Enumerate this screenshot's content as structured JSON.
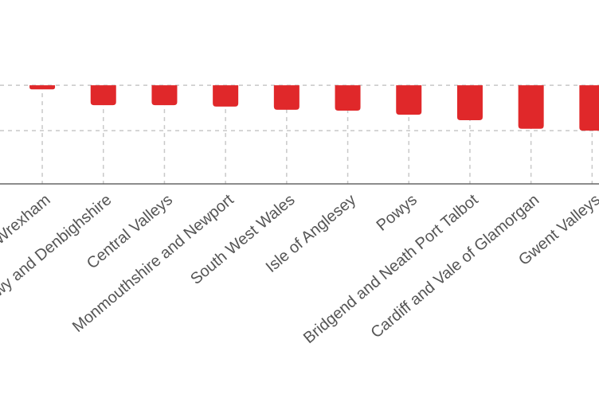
{
  "chart_data": {
    "type": "bar",
    "categories": [
      "Wrexham",
      "Conwy and Denbighshire",
      "Central Valleys",
      "Monmouthshire and Newport",
      "South West Wales",
      "Isle of Anglesey",
      "Powys",
      "Bridgend and Neath Port Talbot",
      "Cardiff and Vale of Glamorgan",
      "Gwent Valleys"
    ],
    "values": [
      -0.09,
      -0.44,
      -0.44,
      -0.47,
      -0.54,
      -0.56,
      -0.65,
      -0.77,
      -0.96,
      -1.0
    ],
    "color": "#e0282a",
    "ylim": [
      -2.175,
      1.88
    ],
    "yticks": [
      0,
      -1
    ],
    "grid": true
  }
}
